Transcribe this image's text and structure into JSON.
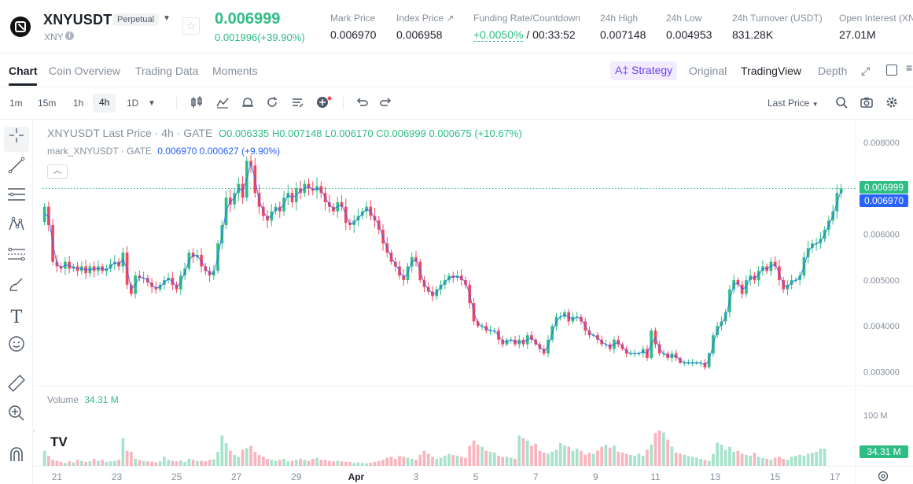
{
  "ticker": {
    "symbol": "XNYUSDT",
    "badge": "Perpetual",
    "sub_symbol": "XNY",
    "info_mark": "i",
    "fav_icon": "☆",
    "last_price": "0.006999",
    "change": "0.001996(+39.90%)",
    "stats": [
      {
        "label": "Mark Price",
        "value": "0.006970"
      },
      {
        "label": "Index Price ↗",
        "value": "0.006958"
      },
      {
        "label": "Funding Rate/Countdown",
        "value_pos": "+0.0050%",
        "value": " / 00:33:52"
      },
      {
        "label": "24h High",
        "value": "0.007148"
      },
      {
        "label": "24h Low",
        "value": "0.004953"
      },
      {
        "label": "24h Turnover (USDT)",
        "value": "831.28K"
      },
      {
        "label": "Open Interest (XN",
        "value": "27.01M"
      }
    ]
  },
  "tabs": {
    "items": [
      "Chart",
      "Coin Overview",
      "Trading Data",
      "Moments"
    ],
    "strategy": "A‡ Strategy",
    "views": [
      "Original",
      "TradingView",
      "Depth"
    ]
  },
  "toolbar": {
    "timeframes": [
      "1m",
      "15m",
      "1h",
      "4h",
      "1D"
    ],
    "price_type": "Last Price"
  },
  "icons": {
    "crosshair": "crosshair-icon",
    "trend_line": "trend-line-icon",
    "horizontal_lines": "horizontal-lines-icon",
    "pattern": "pattern-icon",
    "fib": "fibonacci-icon",
    "brush": "brush-icon",
    "text": "text-icon",
    "emoji": "emoji-icon",
    "ruler": "ruler-icon",
    "zoom": "zoom-icon",
    "magnet": "magnet-icon"
  },
  "legend": {
    "title": "XNYUSDT Last Price · 4h · GATE",
    "o": "O0.006335",
    "h": "H0.007148",
    "l": "L0.006170",
    "c": "C0.006999",
    "chg": "0.000675 (+10.67%)",
    "mark_title": "mark_XNYUSDT · GATE",
    "mark_val": "0.006970",
    "mark_chg": "0.000627 (+9.90%)",
    "vol_label": "Volume",
    "vol_val": "34.31 M",
    "tv_mark": "TV"
  },
  "colors": {
    "up": "#2ebd85",
    "down": "#f6465d",
    "vol_up": "#a6e3cc",
    "vol_down": "#f9b4bd",
    "mark": "#2962ff"
  },
  "chart_data": {
    "type": "candlestick",
    "title": "XNYUSDT Last Price · 4h · GATE",
    "y_ticks": [
      "0.008000",
      "0.007000",
      "0.006000",
      "0.005000",
      "0.004000",
      "0.003000"
    ],
    "y_tick_values": [
      0.008,
      0.007,
      0.006,
      0.005,
      0.004,
      0.003
    ],
    "volume_ticks": [
      "100 M"
    ],
    "x_ticks": [
      "21",
      "23",
      "25",
      "27",
      "29",
      "Apr",
      "3",
      "5",
      "7",
      "9",
      "11",
      "13",
      "15",
      "17"
    ],
    "last_price": 0.006999,
    "mark_price": 0.00697,
    "last_label": "0.006999",
    "mark_label": "0.006970",
    "volume_last_label": "34.31 M",
    "volume_last": 34.31,
    "x_range": [
      0,
      197
    ],
    "x_tick_positions": [
      3.5,
      18,
      32.5,
      47,
      61.5,
      76,
      90.5,
      105,
      119.5,
      134,
      148.5,
      163,
      177.5,
      192
    ],
    "ylim": [
      0.0027,
      0.0085
    ],
    "vol_max": 140,
    "closes": [
      0.0066,
      0.0062,
      0.0054,
      0.0053,
      0.00525,
      0.0054,
      0.00525,
      0.0053,
      0.0052,
      0.0053,
      0.00515,
      0.0053,
      0.0052,
      0.0053,
      0.0052,
      0.00525,
      0.00535,
      0.0054,
      0.0053,
      0.0056,
      0.0049,
      0.0047,
      0.0051,
      0.00505,
      0.00505,
      0.00495,
      0.00485,
      0.0048,
      0.0049,
      0.005,
      0.00505,
      0.0049,
      0.0048,
      0.0051,
      0.00525,
      0.0056,
      0.0055,
      0.00555,
      0.0053,
      0.0052,
      0.0051,
      0.0052,
      0.0058,
      0.0062,
      0.0068,
      0.00665,
      0.0069,
      0.0071,
      0.0068,
      0.0076,
      0.0075,
      0.0069,
      0.0066,
      0.0064,
      0.0063,
      0.0065,
      0.0066,
      0.0065,
      0.0068,
      0.0069,
      0.0067,
      0.007,
      0.0069,
      0.0071,
      0.007,
      0.00695,
      0.00705,
      0.0069,
      0.0067,
      0.0066,
      0.0065,
      0.0067,
      0.0066,
      0.00625,
      0.0062,
      0.0063,
      0.0064,
      0.0065,
      0.0066,
      0.0064,
      0.0063,
      0.0061,
      0.0058,
      0.0056,
      0.0054,
      0.0053,
      0.0051,
      0.005,
      0.0053,
      0.0055,
      0.0054,
      0.005,
      0.00485,
      0.00475,
      0.00465,
      0.0048,
      0.0049,
      0.005,
      0.0051,
      0.00505,
      0.0051,
      0.005,
      0.0049,
      0.0045,
      0.0041,
      0.004,
      0.004,
      0.0039,
      0.0039,
      0.0039,
      0.0037,
      0.0036,
      0.0037,
      0.0037,
      0.0036,
      0.0037,
      0.0036,
      0.0038,
      0.0037,
      0.0036,
      0.0035,
      0.0034,
      0.0037,
      0.004,
      0.0042,
      0.0042,
      0.0043,
      0.0041,
      0.0042,
      0.0042,
      0.0041,
      0.0039,
      0.0038,
      0.0038,
      0.0037,
      0.0036,
      0.0036,
      0.0035,
      0.0037,
      0.0036,
      0.0035,
      0.0034,
      0.0034,
      0.0034,
      0.0034,
      0.0035,
      0.0033,
      0.0039,
      0.0036,
      0.0034,
      0.0034,
      0.0033,
      0.0034,
      0.0033,
      0.0032,
      0.0032,
      0.0032,
      0.0032,
      0.0032,
      0.0032,
      0.0031,
      0.0034,
      0.0038,
      0.004,
      0.0041,
      0.0043,
      0.0048,
      0.005,
      0.0049,
      0.0047,
      0.005,
      0.0051,
      0.005,
      0.0052,
      0.0053,
      0.0052,
      0.0054,
      0.0053,
      0.005,
      0.0048,
      0.0049,
      0.005,
      0.005,
      0.0051,
      0.0055,
      0.0057,
      0.0058,
      0.0058,
      0.0059,
      0.0061,
      0.0063,
      0.0065,
      0.0069,
      0.006999
    ],
    "volumes": [
      30,
      20,
      12,
      10,
      8,
      6,
      9,
      7,
      12,
      10,
      8,
      9,
      14,
      10,
      12,
      8,
      9,
      10,
      12,
      55,
      30,
      28,
      14,
      12,
      10,
      9,
      8,
      7,
      9,
      18,
      12,
      10,
      9,
      11,
      8,
      14,
      12,
      10,
      10,
      9,
      12,
      13,
      28,
      60,
      45,
      30,
      22,
      18,
      32,
      35,
      40,
      28,
      22,
      18,
      14,
      12,
      10,
      12,
      14,
      9,
      10,
      12,
      14,
      12,
      10,
      14,
      16,
      12,
      12,
      10,
      9,
      10,
      9,
      8,
      8,
      6,
      7,
      6,
      5,
      6,
      8,
      10,
      12,
      16,
      18,
      14,
      20,
      18,
      16,
      14,
      12,
      22,
      30,
      24,
      18,
      14,
      16,
      20,
      24,
      22,
      20,
      18,
      16,
      40,
      50,
      42,
      38,
      30,
      28,
      26,
      20,
      18,
      18,
      16,
      14,
      60,
      55,
      50,
      40,
      44,
      30,
      26,
      24,
      28,
      32,
      45,
      40,
      38,
      30,
      34,
      30,
      22,
      26,
      24,
      30,
      38,
      42,
      36,
      40,
      28,
      26,
      24,
      22,
      20,
      24,
      20,
      32,
      42,
      65,
      70,
      66,
      52,
      38,
      26,
      24,
      22,
      20,
      18,
      16,
      14,
      12,
      10,
      24,
      46,
      42,
      32,
      38,
      28,
      30,
      24,
      22,
      20,
      26,
      18,
      16,
      14,
      12,
      16,
      18,
      14,
      12,
      18,
      20,
      22,
      20,
      24,
      26,
      28,
      34,
      34
    ]
  }
}
